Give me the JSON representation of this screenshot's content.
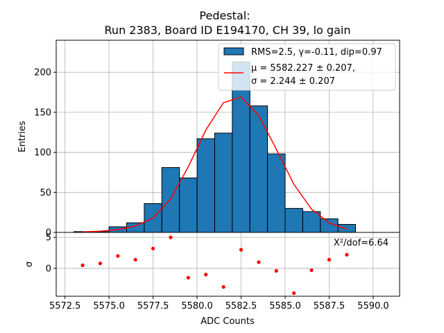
{
  "chart_data": [
    {
      "type": "bar",
      "panel": "main",
      "title_line1": "Pedestal:",
      "title_line2": "Run 2383, Board ID E194170, CH 39, lo gain",
      "ylabel": "Entries",
      "xlim": [
        5572.0,
        5591.5
      ],
      "ylim": [
        0,
        240
      ],
      "yticks": [
        0,
        50,
        100,
        150,
        200
      ],
      "grid": true,
      "legend_position": "top-right",
      "histogram": {
        "name": "RMS=2.5, γ=-0.11, dip=0.97",
        "bin_edges": [
          5573,
          5574,
          5575,
          5576,
          5577,
          5578,
          5579,
          5580,
          5581,
          5582,
          5583,
          5584,
          5585,
          5586,
          5587,
          5588,
          5589
        ],
        "counts": [
          1,
          1,
          7,
          12,
          36,
          81,
          68,
          117,
          124,
          213,
          158,
          98,
          30,
          26,
          17,
          10
        ],
        "fill_color": "#1f77b4",
        "edge_color": "#000000"
      },
      "fit": {
        "name_line1": "μ = 5582.227 ± 0.207,",
        "name_line2": "σ = 2.244 ± 0.207",
        "color": "#ff0000",
        "x": [
          5573.5,
          5574.5,
          5575.5,
          5576.5,
          5577.5,
          5578.5,
          5579.5,
          5580.5,
          5581.5,
          5582.5,
          5583.5,
          5584.5,
          5585.5,
          5586.5,
          5587.5,
          5588.5
        ],
        "y": [
          0.5,
          1.5,
          3.5,
          8.0,
          18.0,
          42.0,
          82.0,
          128.0,
          162.0,
          169.0,
          146.0,
          104.0,
          60.0,
          29.0,
          12.0,
          4.0
        ]
      }
    },
    {
      "type": "scatter",
      "panel": "residual",
      "xlabel": "ADC Counts",
      "ylabel": "σ",
      "xlim": [
        5572.0,
        5591.5
      ],
      "ylim": [
        -4.5,
        5.8
      ],
      "yticks": [
        0,
        5
      ],
      "yticklabels": [
        "0",
        "5"
      ],
      "xticks": [
        5572.5,
        5575.0,
        5577.5,
        5580.0,
        5582.5,
        5585.0,
        5587.5,
        5590.0
      ],
      "xticklabels": [
        "5572.5",
        "5575.0",
        "5577.5",
        "5580.0",
        "5582.5",
        "5585.0",
        "5587.5",
        "5590.0"
      ],
      "grid": true,
      "annotation": "X²/dof=6.64",
      "color": "#ff0000",
      "x": [
        5573.5,
        5574.5,
        5575.5,
        5576.5,
        5577.5,
        5578.5,
        5579.5,
        5580.5,
        5581.5,
        5582.5,
        5583.5,
        5584.5,
        5585.5,
        5586.5,
        5587.5,
        5588.5
      ],
      "y": [
        0.5,
        0.8,
        2.0,
        1.4,
        3.2,
        5.0,
        -1.5,
        -1.0,
        -3.0,
        3.0,
        1.0,
        -0.4,
        -4.0,
        -0.3,
        1.4,
        2.2
      ]
    }
  ]
}
